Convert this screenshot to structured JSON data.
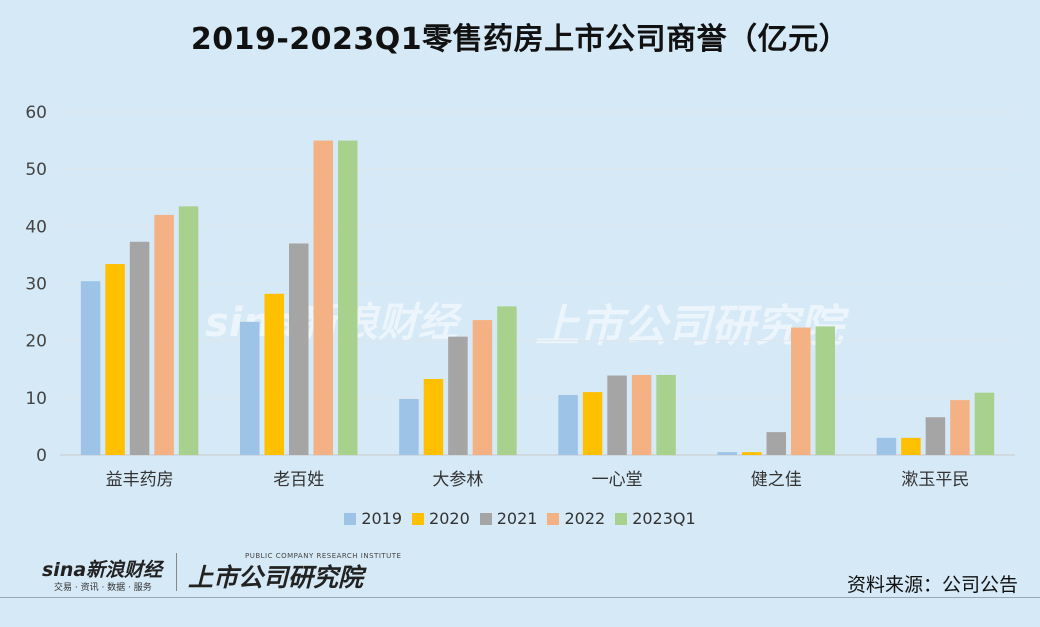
{
  "chart_data": {
    "type": "bar",
    "title": "2019-2023Q1零售药房上市公司商誉（亿元）",
    "categories": [
      "益丰药房",
      "老百姓",
      "大参林",
      "一心堂",
      "健之佳",
      "漱玉平民"
    ],
    "ylim": [
      0,
      60
    ],
    "yticks": [
      0,
      10,
      20,
      30,
      40,
      50,
      60
    ],
    "grid": true,
    "legend_position": "bottom",
    "series": [
      {
        "name": "2019",
        "color": "#9dc3e6",
        "values": [
          30.4,
          23.3,
          9.8,
          10.5,
          0.5,
          3.0
        ]
      },
      {
        "name": "2020",
        "color": "#ffc000",
        "values": [
          33.4,
          28.2,
          13.3,
          11.0,
          0.5,
          3.0
        ]
      },
      {
        "name": "2021",
        "color": "#a5a5a5",
        "values": [
          37.3,
          37.0,
          20.7,
          13.9,
          4.0,
          6.6
        ]
      },
      {
        "name": "2022",
        "color": "#f4b183",
        "values": [
          42.0,
          55.0,
          23.6,
          14.0,
          22.3,
          9.6
        ]
      },
      {
        "name": "2023Q1",
        "color": "#a9d18e",
        "values": [
          43.5,
          55.0,
          26.0,
          14.0,
          22.5,
          10.9
        ]
      }
    ]
  },
  "footer": {
    "sina_logo": "sina新浪财经",
    "sina_sub": "交易 · 资讯 · 数据 · 服务",
    "research_logo": "上市公司研究院",
    "research_sub": "PUBLIC COMPANY RESEARCH INSTITUTE",
    "source": "资料来源：公司公告"
  },
  "watermark": {
    "sina": "sina新浪财经",
    "research": "上市公司研究院"
  }
}
